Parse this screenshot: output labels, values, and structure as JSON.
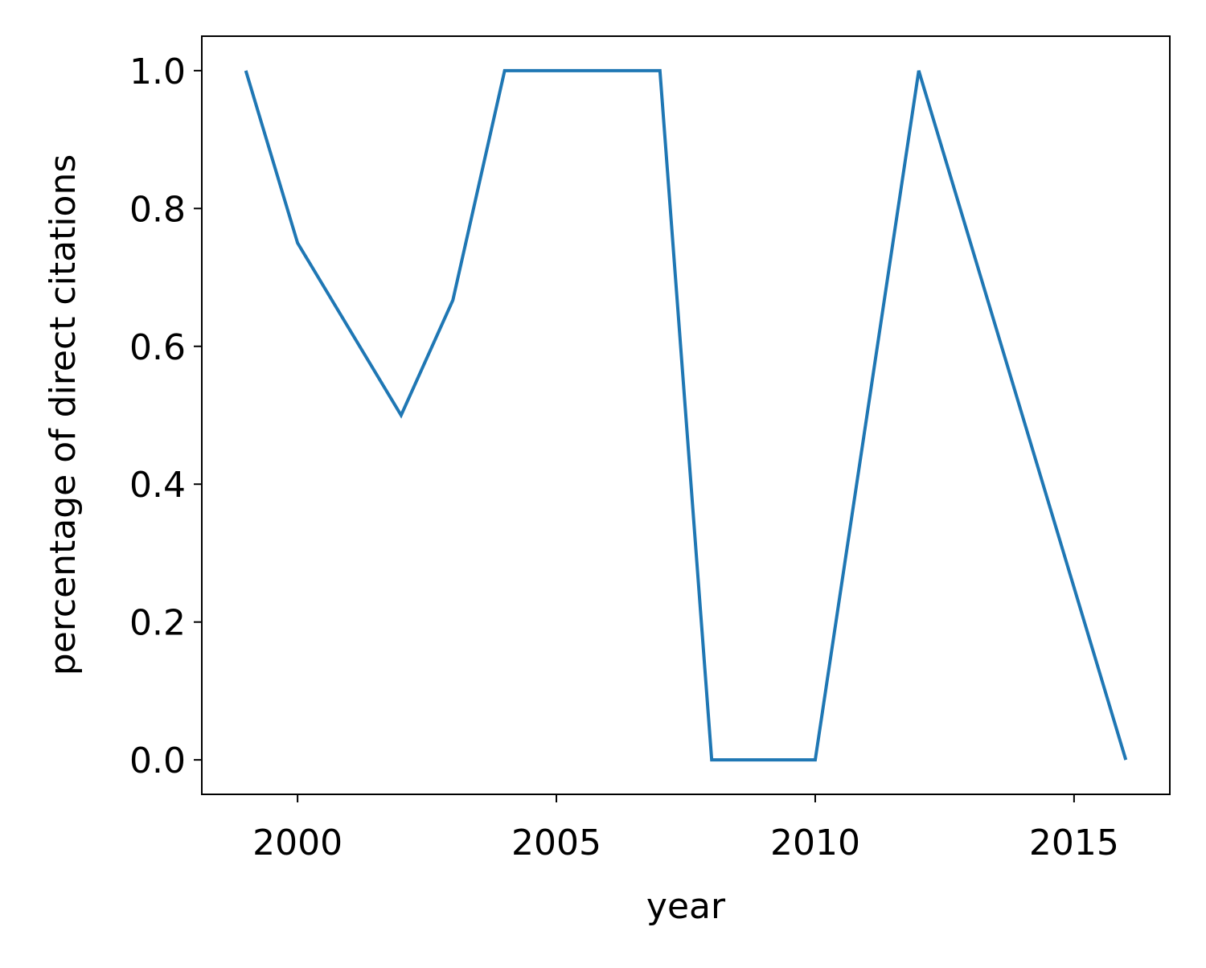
{
  "chart_data": {
    "type": "line",
    "title": "",
    "xlabel": "year",
    "ylabel": "percentage of direct citations",
    "xlim": [
      1998.15,
      2016.85
    ],
    "ylim": [
      -0.05,
      1.05
    ],
    "xticks": [
      2000,
      2005,
      2010,
      2015
    ],
    "yticks": [
      0.0,
      0.2,
      0.4,
      0.6,
      0.8,
      1.0
    ],
    "xtick_labels": [
      "2000",
      "2005",
      "2010",
      "2015"
    ],
    "ytick_labels": [
      "0.0",
      "0.2",
      "0.4",
      "0.6",
      "0.8",
      "1.0"
    ],
    "grid": false,
    "series": [
      {
        "color": "#1f77b4",
        "x": [
          1999,
          2000,
          2002,
          2003,
          2004,
          2007,
          2008,
          2010,
          2012,
          2016
        ],
        "y": [
          1.0,
          0.75,
          0.5,
          0.667,
          1.0,
          1.0,
          0.0,
          0.0,
          1.0,
          0.0
        ]
      }
    ]
  }
}
